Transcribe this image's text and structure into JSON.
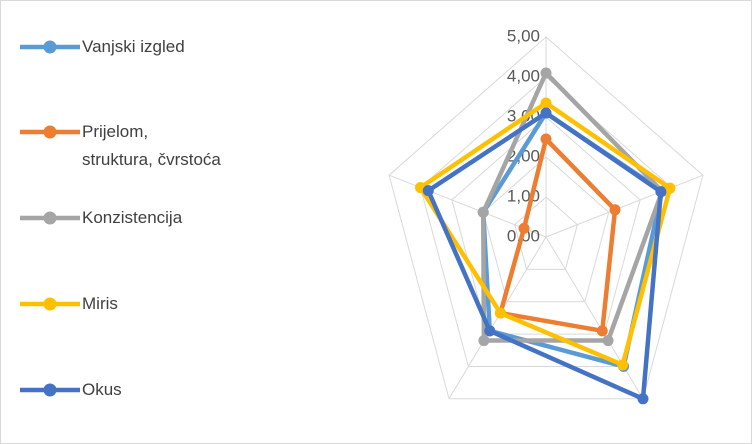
{
  "chart_data": {
    "type": "radar",
    "categories": [
      null,
      null,
      null,
      null,
      null
    ],
    "ylim": [
      0,
      5
    ],
    "yticks": [
      {
        "value": 0,
        "label": "0,00"
      },
      {
        "value": 1,
        "label": "1,00"
      },
      {
        "value": 2,
        "label": "2,00"
      },
      {
        "value": 3,
        "label": "3,00"
      },
      {
        "value": 4,
        "label": "4,00"
      },
      {
        "value": 5,
        "label": "5,00"
      }
    ],
    "grid": true,
    "legend": "left",
    "series": [
      {
        "name": "Vanjski izgled",
        "color": "#5b9bd5",
        "values": [
          3.1,
          3.7,
          4.0,
          2.9,
          2.0
        ]
      },
      {
        "name": "Prijelom,\nstruktura, čvrstoća",
        "color": "#ed7d31",
        "values": [
          2.45,
          2.2,
          2.9,
          2.35,
          0.7
        ]
      },
      {
        "name": "Konzistencija",
        "color": "#a5a5a5",
        "values": [
          4.1,
          3.7,
          3.2,
          3.2,
          2.0
        ]
      },
      {
        "name": "Miris",
        "color": "#ffc000",
        "values": [
          3.35,
          3.95,
          3.95,
          2.35,
          4.0
        ]
      },
      {
        "name": "Okus",
        "color": "#4472c4",
        "values": [
          3.1,
          3.66,
          5.0,
          2.9,
          3.75
        ]
      }
    ]
  }
}
